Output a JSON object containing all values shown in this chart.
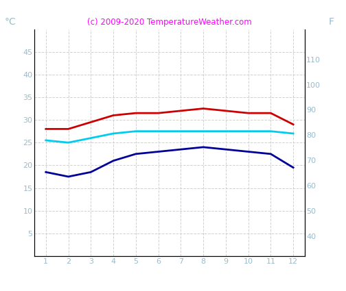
{
  "months": [
    1,
    2,
    3,
    4,
    5,
    6,
    7,
    8,
    9,
    10,
    11,
    12
  ],
  "red_line": [
    28,
    28,
    29.5,
    31,
    31.5,
    31.5,
    32,
    32.5,
    32,
    31.5,
    31.5,
    29
  ],
  "cyan_line": [
    25.5,
    25,
    26,
    27,
    27.5,
    27.5,
    27.5,
    27.5,
    27.5,
    27.5,
    27.5,
    27
  ],
  "blue_line": [
    18.5,
    17.5,
    18.5,
    21,
    22.5,
    23,
    23.5,
    24,
    23.5,
    23,
    22.5,
    19.5
  ],
  "red_color": "#cc0000",
  "cyan_color": "#00ccee",
  "blue_color": "#000099",
  "title": "(c) 2009-2020 TemperatureWeather.com",
  "title_color": "#ff00ff",
  "ylabel_left": "°C",
  "ylabel_right": "F",
  "tick_color": "#99bbcc",
  "ylabel_fontsize": 10,
  "tick_fontsize": 8,
  "ylim_left": [
    0,
    50
  ],
  "ylim_right": [
    32,
    122
  ],
  "yticks_left": [
    5,
    10,
    15,
    20,
    25,
    30,
    35,
    40,
    45
  ],
  "yticks_right": [
    40,
    50,
    60,
    70,
    80,
    90,
    100,
    110
  ],
  "grid_color": "#cccccc",
  "background_color": "#ffffff",
  "line_width": 2.0
}
